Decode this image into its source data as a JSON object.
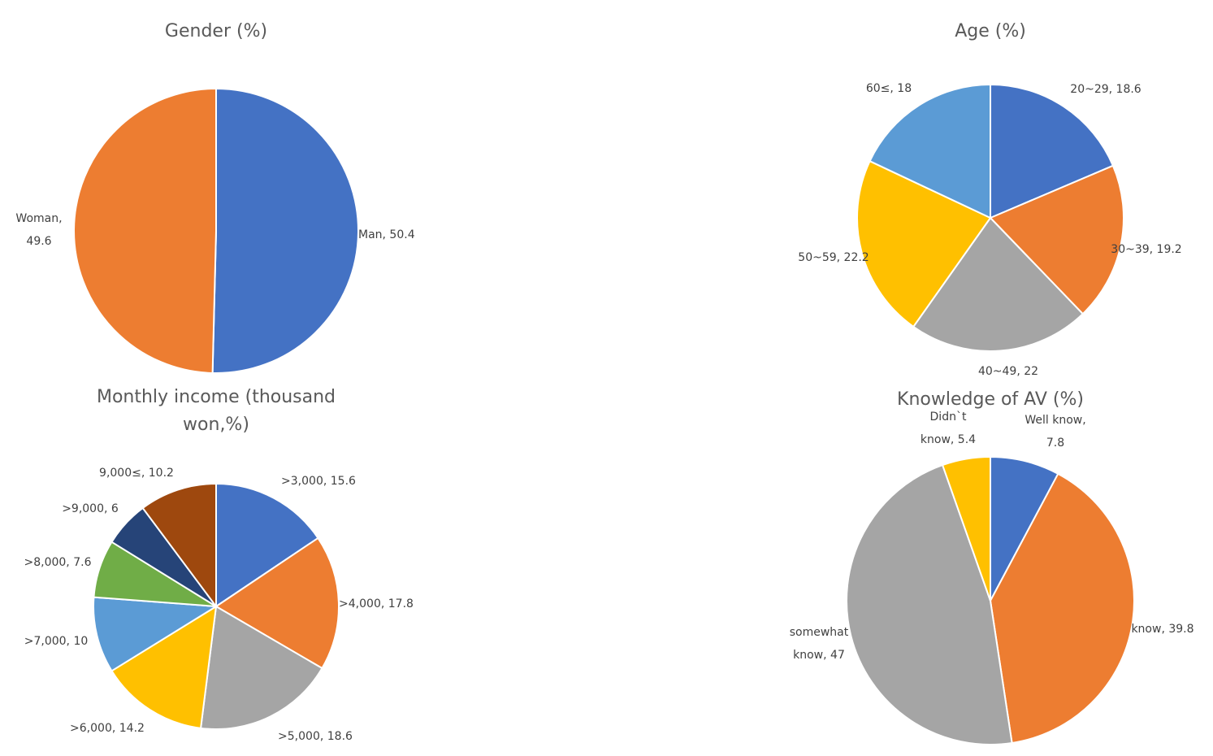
{
  "chart_data": [
    {
      "type": "pie",
      "title": [
        "Gender (%)"
      ],
      "categories": [
        "Man",
        "Woman"
      ],
      "values": [
        50.4,
        49.6
      ],
      "labels": [
        [
          "Man, 50.4"
        ],
        [
          "Woman,",
          "49.6"
        ]
      ],
      "colors": [
        "#4472C4",
        "#ED7D31"
      ]
    },
    {
      "type": "pie",
      "title": [
        "Age (%)"
      ],
      "categories": [
        "20~29",
        "30~39",
        "40~49",
        "50~59",
        "60≤"
      ],
      "values": [
        18.6,
        19.2,
        22,
        22.2,
        18
      ],
      "labels": [
        [
          "20~29, 18.6"
        ],
        [
          "30~39, 19.2"
        ],
        [
          "40~49, 22"
        ],
        [
          "50~59, 22.2"
        ],
        [
          "60≤, 18"
        ]
      ],
      "colors": [
        "#4472C4",
        "#ED7D31",
        "#A5A5A5",
        "#FFC000",
        "#5B9BD5"
      ]
    },
    {
      "type": "pie",
      "title": [
        "Monthly income (thousand",
        "won,%)"
      ],
      "categories": [
        ">3,000",
        ">4,000",
        ">5,000",
        ">6,000",
        ">7,000",
        ">8,000",
        ">9,000",
        "9,000≤"
      ],
      "values": [
        15.6,
        17.8,
        18.6,
        14.2,
        10,
        7.6,
        6,
        10.2
      ],
      "labels": [
        [
          ">3,000, 15.6"
        ],
        [
          ">4,000, 17.8"
        ],
        [
          ">5,000, 18.6"
        ],
        [
          ">6,000, 14.2"
        ],
        [
          ">7,000, 10"
        ],
        [
          ">8,000, 7.6"
        ],
        [
          ">9,000, 6"
        ],
        [
          "9,000≤, 10.2"
        ]
      ],
      "colors": [
        "#4472C4",
        "#ED7D31",
        "#A5A5A5",
        "#FFC000",
        "#5B9BD5",
        "#70AD47",
        "#264478",
        "#9E480E"
      ]
    },
    {
      "type": "pie",
      "title": [
        "Knowledge of AV (%)"
      ],
      "categories": [
        "Well know",
        "know",
        "somewhat know",
        "Didn`t know"
      ],
      "values": [
        7.8,
        39.8,
        47,
        5.4
      ],
      "labels": [
        [
          "Well know,",
          "7.8"
        ],
        [
          "know, 39.8"
        ],
        [
          "somewhat",
          "know, 47"
        ],
        [
          "Didn`t",
          "know, 5.4"
        ]
      ],
      "colors": [
        "#4472C4",
        "#ED7D31",
        "#A5A5A5",
        "#FFC000"
      ]
    }
  ]
}
